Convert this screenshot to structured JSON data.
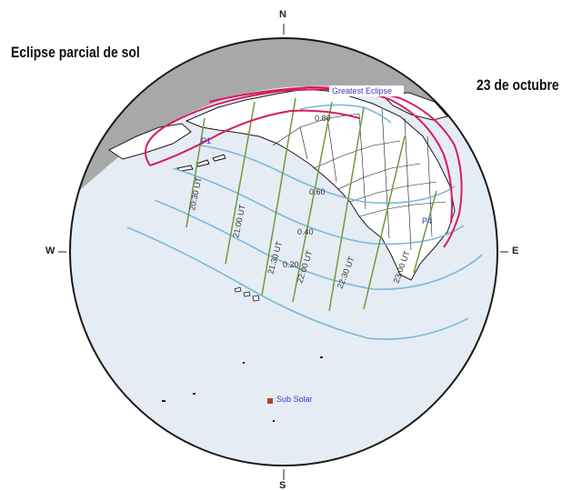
{
  "title": "Eclipse parcial de sol",
  "date": "23 de octubre",
  "compass": {
    "north": "N",
    "south": "S",
    "west": "W",
    "east": "E"
  },
  "annotations": {
    "greatest_eclipse": "Greatest Eclipse",
    "sub_solar": "Sub Solar",
    "p1": "P1",
    "p4": "P4"
  },
  "magnitude_labels": [
    "0.80",
    "0.60",
    "0.40",
    "0.20"
  ],
  "time_labels": [
    "20:30 UT",
    "21:00 UT",
    "21:30 UT",
    "22:00 UT",
    "22:30 UT",
    "23:00 UT"
  ],
  "colors": {
    "night": "#a8a8a8",
    "day": "#e6ecf4",
    "land": "#ffffff",
    "coast": "#1a1a1a",
    "magnitude_curves": "#7cb8dc",
    "time_lines": "#6f9a3a",
    "penumbra_limits": "#d81b60",
    "sub_solar_marker": "#c0392b"
  }
}
